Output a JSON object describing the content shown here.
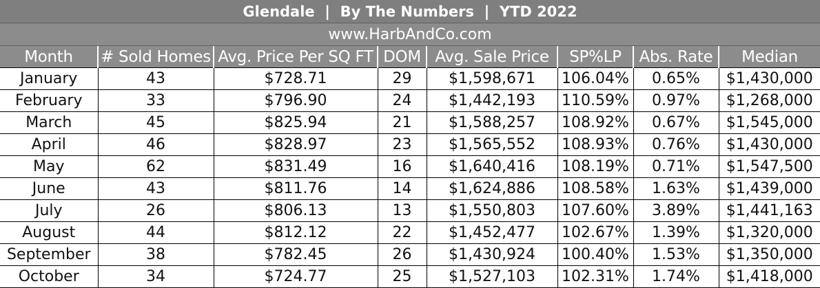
{
  "header": {
    "title": "Glendale  |  By The Numbers  |  YTD 2022",
    "website": "www.HarbAndCo.com"
  },
  "columns": [
    "Month",
    "# Sold Homes",
    "Avg. Price Per SQ FT",
    "DOM",
    "Avg. Sale Price",
    "SP%LP",
    "Abs. Rate",
    "Median"
  ],
  "rows": [
    [
      "January",
      "43",
      "$728.71",
      "29",
      "$1,598,671",
      "106.04%",
      "0.65%",
      "$1,430,000"
    ],
    [
      "February",
      "33",
      "$796.90",
      "24",
      "$1,442,193",
      "110.59%",
      "0.97%",
      "$1,268,000"
    ],
    [
      "March",
      "45",
      "$825.94",
      "21",
      "$1,588,257",
      "108.92%",
      "0.67%",
      "$1,545,000"
    ],
    [
      "April",
      "46",
      "$828.97",
      "23",
      "$1,565,552",
      "108.93%",
      "0.76%",
      "$1,430,000"
    ],
    [
      "May",
      "62",
      "$831.49",
      "16",
      "$1,640,416",
      "108.19%",
      "0.71%",
      "$1,547,500"
    ],
    [
      "June",
      "43",
      "$811.76",
      "14",
      "$1,624,886",
      "108.58%",
      "1.63%",
      "$1,439,000"
    ],
    [
      "July",
      "26",
      "$806.13",
      "13",
      "$1,550,803",
      "107.60%",
      "3.89%",
      "$1,441,163"
    ],
    [
      "August",
      "44",
      "$812.12",
      "22",
      "$1,452,477",
      "102.67%",
      "1.39%",
      "$1,320,000"
    ],
    [
      "September",
      "38",
      "$782.45",
      "26",
      "$1,430,924",
      "100.40%",
      "1.53%",
      "$1,350,000"
    ],
    [
      "October",
      "34",
      "$724.77",
      "25",
      "$1,527,103",
      "102.31%",
      "1.74%",
      "$1,418,000"
    ]
  ]
}
